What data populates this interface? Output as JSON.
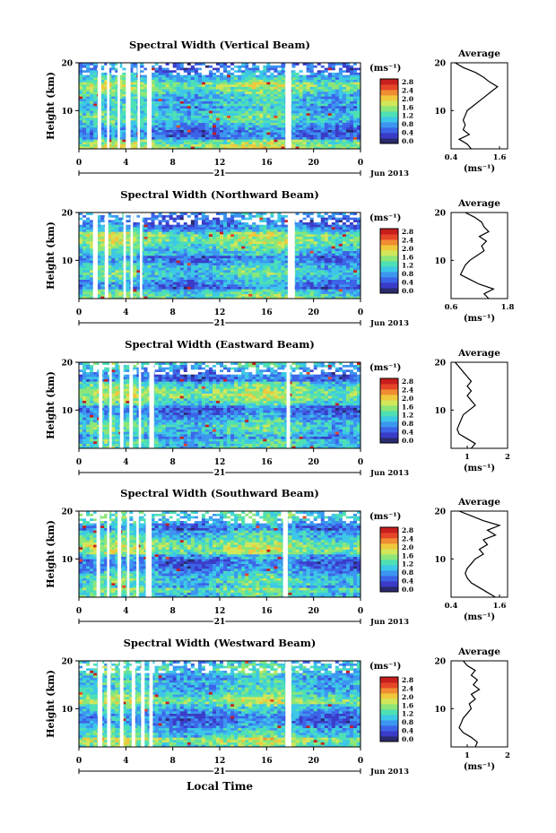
{
  "figure": {
    "xlabel": "Local Time",
    "colors": {
      "colormap": [
        "#2a2a6e",
        "#3a3cc8",
        "#3c64e8",
        "#3c96f0",
        "#3cc8e6",
        "#4ee0b4",
        "#8ce678",
        "#d2e65a",
        "#f0c83c",
        "#f08c32",
        "#e64628",
        "#c81e1e"
      ],
      "gap": "#ffffff",
      "ink": "#000000"
    }
  },
  "panels": [
    {
      "title": "Spectral Width (Vertical Beam)",
      "ylabel": "Height (km)",
      "unit_label": "(ms⁻¹)",
      "yticks": [
        "20",
        "10"
      ],
      "xticks": [
        "0",
        "4",
        "8",
        "12",
        "16",
        "20",
        "0"
      ],
      "day_label": "21",
      "month_label": "Jun 2013",
      "colorbar_ticks": [
        "2.8",
        "2.4",
        "2.0",
        "1.6",
        "1.2",
        "0.8",
        "0.4",
        "0.0"
      ],
      "avg_title": "Average",
      "avg_yticks": [
        "20",
        "10"
      ],
      "avg_xticks": [
        "0.4",
        "1.6"
      ],
      "avg_xunit": "(ms⁻¹)"
    },
    {
      "title": "Spectral Width (Northward Beam)",
      "ylabel": "Height (km)",
      "unit_label": "(ms⁻¹)",
      "yticks": [
        "20",
        "10"
      ],
      "xticks": [
        "0",
        "4",
        "8",
        "12",
        "16",
        "20",
        "0"
      ],
      "day_label": "21",
      "month_label": "Jun 2013",
      "colorbar_ticks": [
        "2.8",
        "2.4",
        "2.0",
        "1.6",
        "1.2",
        "0.8",
        "0.4",
        "0.0"
      ],
      "avg_title": "Average",
      "avg_yticks": [
        "20",
        "10"
      ],
      "avg_xticks": [
        "0.6",
        "1.8"
      ],
      "avg_xunit": "(ms⁻¹)"
    },
    {
      "title": "Spectral Width (Eastward Beam)",
      "ylabel": "Height (km)",
      "unit_label": "(ms⁻¹)",
      "yticks": [
        "20",
        "10"
      ],
      "xticks": [
        "0",
        "4",
        "8",
        "12",
        "16",
        "20",
        "0"
      ],
      "day_label": "21",
      "month_label": "Jun 2013",
      "colorbar_ticks": [
        "2.8",
        "2.4",
        "2.0",
        "1.6",
        "1.2",
        "0.8",
        "0.4",
        "0.0"
      ],
      "avg_title": "Average",
      "avg_yticks": [
        "20",
        "10"
      ],
      "avg_xticks": [
        "1",
        "2"
      ],
      "avg_xunit": "(ms⁻¹)"
    },
    {
      "title": "Spectral Width (Southward Beam)",
      "ylabel": "Height (km)",
      "unit_label": "(ms⁻¹)",
      "yticks": [
        "20",
        "10"
      ],
      "xticks": [
        "0",
        "4",
        "8",
        "12",
        "16",
        "20",
        "0"
      ],
      "day_label": "21",
      "month_label": "Jun 2013",
      "colorbar_ticks": [
        "2.8",
        "2.4",
        "2.0",
        "1.6",
        "1.2",
        "0.8",
        "0.4",
        "0.0"
      ],
      "avg_title": "Average",
      "avg_yticks": [
        "20",
        "10"
      ],
      "avg_xticks": [
        "0.4",
        "1.6"
      ],
      "avg_xunit": "(ms⁻¹)"
    },
    {
      "title": "Spectral Width (Westward Beam)",
      "ylabel": "Height (km)",
      "unit_label": "(ms⁻¹)",
      "yticks": [
        "20",
        "10"
      ],
      "xticks": [
        "0",
        "4",
        "8",
        "12",
        "16",
        "20",
        "0"
      ],
      "day_label": "21",
      "month_label": "Jun 2013",
      "colorbar_ticks": [
        "2.8",
        "2.4",
        "2.0",
        "1.6",
        "1.2",
        "0.8",
        "0.4",
        "0.0"
      ],
      "avg_title": "Average",
      "avg_yticks": [
        "20",
        "10"
      ],
      "avg_xticks": [
        "1",
        "2"
      ],
      "avg_xunit": "(ms⁻¹)"
    }
  ],
  "chart_data": [
    {
      "type": "heatmap",
      "beam": "Vertical",
      "x_range_hours": [
        0,
        24
      ],
      "y_range_km": [
        2,
        20
      ],
      "colorbar_range": [
        0.0,
        3.0
      ],
      "data_gaps_hours": [
        [
          1.6,
          1.9
        ],
        [
          2.4,
          2.6
        ],
        [
          3.3,
          3.5
        ],
        [
          4.0,
          4.4
        ],
        [
          5.0,
          5.2
        ],
        [
          5.8,
          6.2
        ],
        [
          17.6,
          18.1
        ]
      ],
      "profile": {
        "type": "line",
        "xlim": [
          0.4,
          1.8
        ],
        "ylim": [
          2,
          20
        ],
        "heights_km": [
          2,
          3,
          4,
          5,
          6,
          7,
          8,
          9,
          10,
          11,
          12,
          13,
          14,
          15,
          16,
          17,
          18,
          19,
          20
        ],
        "values": [
          0.9,
          0.8,
          0.6,
          0.85,
          0.7,
          0.75,
          0.7,
          0.75,
          0.8,
          0.95,
          1.1,
          1.25,
          1.4,
          1.55,
          1.35,
          1.2,
          1.0,
          0.7,
          0.5
        ]
      }
    },
    {
      "type": "heatmap",
      "beam": "Northward",
      "x_range_hours": [
        0,
        24
      ],
      "y_range_km": [
        2,
        20
      ],
      "colorbar_range": [
        0.0,
        3.0
      ],
      "data_gaps_hours": [
        [
          1.2,
          1.6
        ],
        [
          2.2,
          2.5
        ],
        [
          3.8,
          4.0
        ],
        [
          4.4,
          4.6
        ],
        [
          5.2,
          5.4
        ],
        [
          17.8,
          18.4
        ]
      ],
      "profile": {
        "type": "line",
        "xlim": [
          0.6,
          1.8
        ],
        "ylim": [
          2,
          20
        ],
        "heights_km": [
          2,
          3,
          4,
          5,
          6,
          7,
          8,
          9,
          10,
          11,
          12,
          13,
          14,
          15,
          16,
          17,
          18,
          19,
          20
        ],
        "values": [
          1.4,
          1.3,
          1.5,
          1.2,
          1.0,
          0.8,
          0.85,
          0.9,
          1.0,
          1.15,
          1.3,
          1.25,
          1.35,
          1.2,
          1.4,
          1.3,
          1.25,
          1.1,
          0.9
        ]
      }
    },
    {
      "type": "heatmap",
      "beam": "Eastward",
      "x_range_hours": [
        0,
        24
      ],
      "y_range_km": [
        2,
        20
      ],
      "colorbar_range": [
        0.0,
        3.0
      ],
      "data_gaps_hours": [
        [
          1.7,
          2.0
        ],
        [
          2.6,
          2.8
        ],
        [
          3.5,
          3.8
        ],
        [
          4.3,
          4.6
        ],
        [
          5.1,
          5.3
        ],
        [
          6.0,
          6.4
        ],
        [
          17.7,
          18.0
        ]
      ],
      "profile": {
        "type": "line",
        "xlim": [
          0.6,
          2.0
        ],
        "ylim": [
          2,
          20
        ],
        "heights_km": [
          2,
          3,
          4,
          5,
          6,
          7,
          8,
          9,
          10,
          11,
          12,
          13,
          14,
          15,
          16,
          17,
          18,
          19,
          20
        ],
        "values": [
          1.1,
          1.2,
          1.0,
          0.8,
          0.75,
          0.8,
          0.85,
          0.9,
          1.05,
          1.2,
          1.1,
          1.0,
          1.1,
          1.0,
          1.1,
          1.0,
          0.9,
          0.8,
          0.7
        ]
      }
    },
    {
      "type": "heatmap",
      "beam": "Southward",
      "x_range_hours": [
        0,
        24
      ],
      "y_range_km": [
        2,
        20
      ],
      "colorbar_range": [
        0.0,
        3.0
      ],
      "data_gaps_hours": [
        [
          1.5,
          1.8
        ],
        [
          2.4,
          2.6
        ],
        [
          3.3,
          3.6
        ],
        [
          4.1,
          4.3
        ],
        [
          4.9,
          5.1
        ],
        [
          5.7,
          6.2
        ],
        [
          17.4,
          17.8
        ]
      ],
      "profile": {
        "type": "line",
        "xlim": [
          0.4,
          1.8
        ],
        "ylim": [
          2,
          20
        ],
        "heights_km": [
          2,
          3,
          4,
          5,
          6,
          7,
          8,
          9,
          10,
          11,
          12,
          13,
          14,
          15,
          16,
          17,
          18,
          19,
          20
        ],
        "values": [
          1.5,
          1.3,
          1.1,
          0.9,
          0.8,
          0.75,
          0.8,
          0.9,
          1.0,
          1.2,
          1.1,
          1.3,
          1.2,
          1.5,
          1.3,
          1.6,
          1.2,
          0.9,
          0.6
        ]
      }
    },
    {
      "type": "heatmap",
      "beam": "Westward",
      "x_range_hours": [
        0,
        24
      ],
      "y_range_km": [
        2,
        20
      ],
      "colorbar_range": [
        0.0,
        3.0
      ],
      "data_gaps_hours": [
        [
          1.6,
          2.0
        ],
        [
          2.4,
          2.7
        ],
        [
          3.5,
          3.8
        ],
        [
          4.5,
          4.8
        ],
        [
          5.3,
          5.6
        ],
        [
          6.0,
          6.3
        ],
        [
          17.6,
          18.1
        ]
      ],
      "profile": {
        "type": "line",
        "xlim": [
          0.6,
          2.0
        ],
        "ylim": [
          2,
          20
        ],
        "heights_km": [
          2,
          3,
          4,
          5,
          6,
          7,
          8,
          9,
          10,
          11,
          12,
          13,
          14,
          15,
          16,
          17,
          18,
          19,
          20
        ],
        "values": [
          1.2,
          1.25,
          1.1,
          0.9,
          0.8,
          0.85,
          0.9,
          1.0,
          1.1,
          1.05,
          1.2,
          1.1,
          1.3,
          1.15,
          1.25,
          1.1,
          1.2,
          1.0,
          0.9
        ]
      }
    }
  ]
}
